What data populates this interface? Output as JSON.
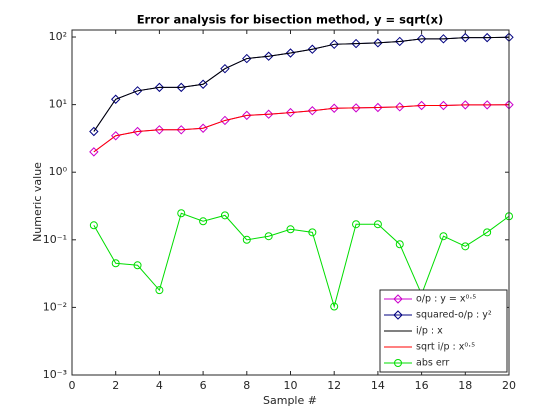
{
  "chart_data": {
    "type": "line",
    "title": "Error analysis for bisection method, y = sqrt(x)",
    "xlabel": "Sample #",
    "ylabel": "Numeric value",
    "log_y": true,
    "legend": "lower right",
    "xlim": [
      0,
      20
    ],
    "xticks": [
      0,
      2,
      4,
      6,
      8,
      10,
      12,
      14,
      16,
      18,
      20
    ],
    "ylim": [
      0.001,
      127
    ],
    "yticks": [
      {
        "value": 0.001,
        "label": "10⁻³"
      },
      {
        "value": 0.01,
        "label": "10⁻²"
      },
      {
        "value": 0.1,
        "label": "10⁻¹"
      },
      {
        "value": 1,
        "label": "10⁰"
      },
      {
        "value": 10,
        "label": "10¹"
      },
      {
        "value": 100,
        "label": "10²"
      }
    ],
    "x": [
      1,
      2,
      3,
      4,
      5,
      6,
      7,
      8,
      9,
      10,
      11,
      12,
      13,
      14,
      15,
      16,
      17,
      18,
      19,
      20
    ],
    "series": [
      {
        "name": "o/p : y = x⁰·⁵",
        "color": "#cc00cc",
        "marker": "diamond",
        "values": [
          2,
          3.46,
          4,
          4.24,
          4.24,
          4.47,
          5.83,
          6.93,
          7.21,
          7.62,
          8.12,
          8.83,
          8.94,
          9.06,
          9.27,
          9.7,
          9.7,
          9.9,
          9.9,
          9.95
        ]
      },
      {
        "name": "squared-o/p : y²",
        "color": "#000080",
        "marker": "diamond",
        "values": [
          4,
          12,
          16,
          18,
          18,
          20,
          34,
          48,
          52,
          58,
          66,
          78,
          80,
          82,
          86,
          94,
          94,
          98,
          98,
          99
        ]
      },
      {
        "name": "i/p : x",
        "color": "#000000",
        "marker": "none",
        "values": [
          4,
          12,
          16,
          18,
          18,
          20,
          34,
          48,
          52,
          58,
          66,
          78,
          80,
          82,
          86,
          94,
          94,
          98,
          98,
          99
        ]
      },
      {
        "name": "sqrt i/p : x⁰·⁵",
        "color": "#ff0000",
        "marker": "none",
        "values": [
          2,
          3.46,
          4,
          4.24,
          4.24,
          4.47,
          5.83,
          6.93,
          7.21,
          7.62,
          8.12,
          8.83,
          8.94,
          9.06,
          9.27,
          9.7,
          9.7,
          9.9,
          9.9,
          9.95
        ]
      },
      {
        "name": "abs err",
        "color": "#00dd00",
        "marker": "circle",
        "values": [
          0.164,
          0.045,
          0.042,
          0.018,
          0.247,
          0.188,
          0.23,
          0.1,
          0.113,
          0.143,
          0.129,
          0.0103,
          0.17,
          0.17,
          0.086,
          0.0156,
          0.113,
          0.08,
          0.129,
          0.223
        ]
      }
    ]
  }
}
